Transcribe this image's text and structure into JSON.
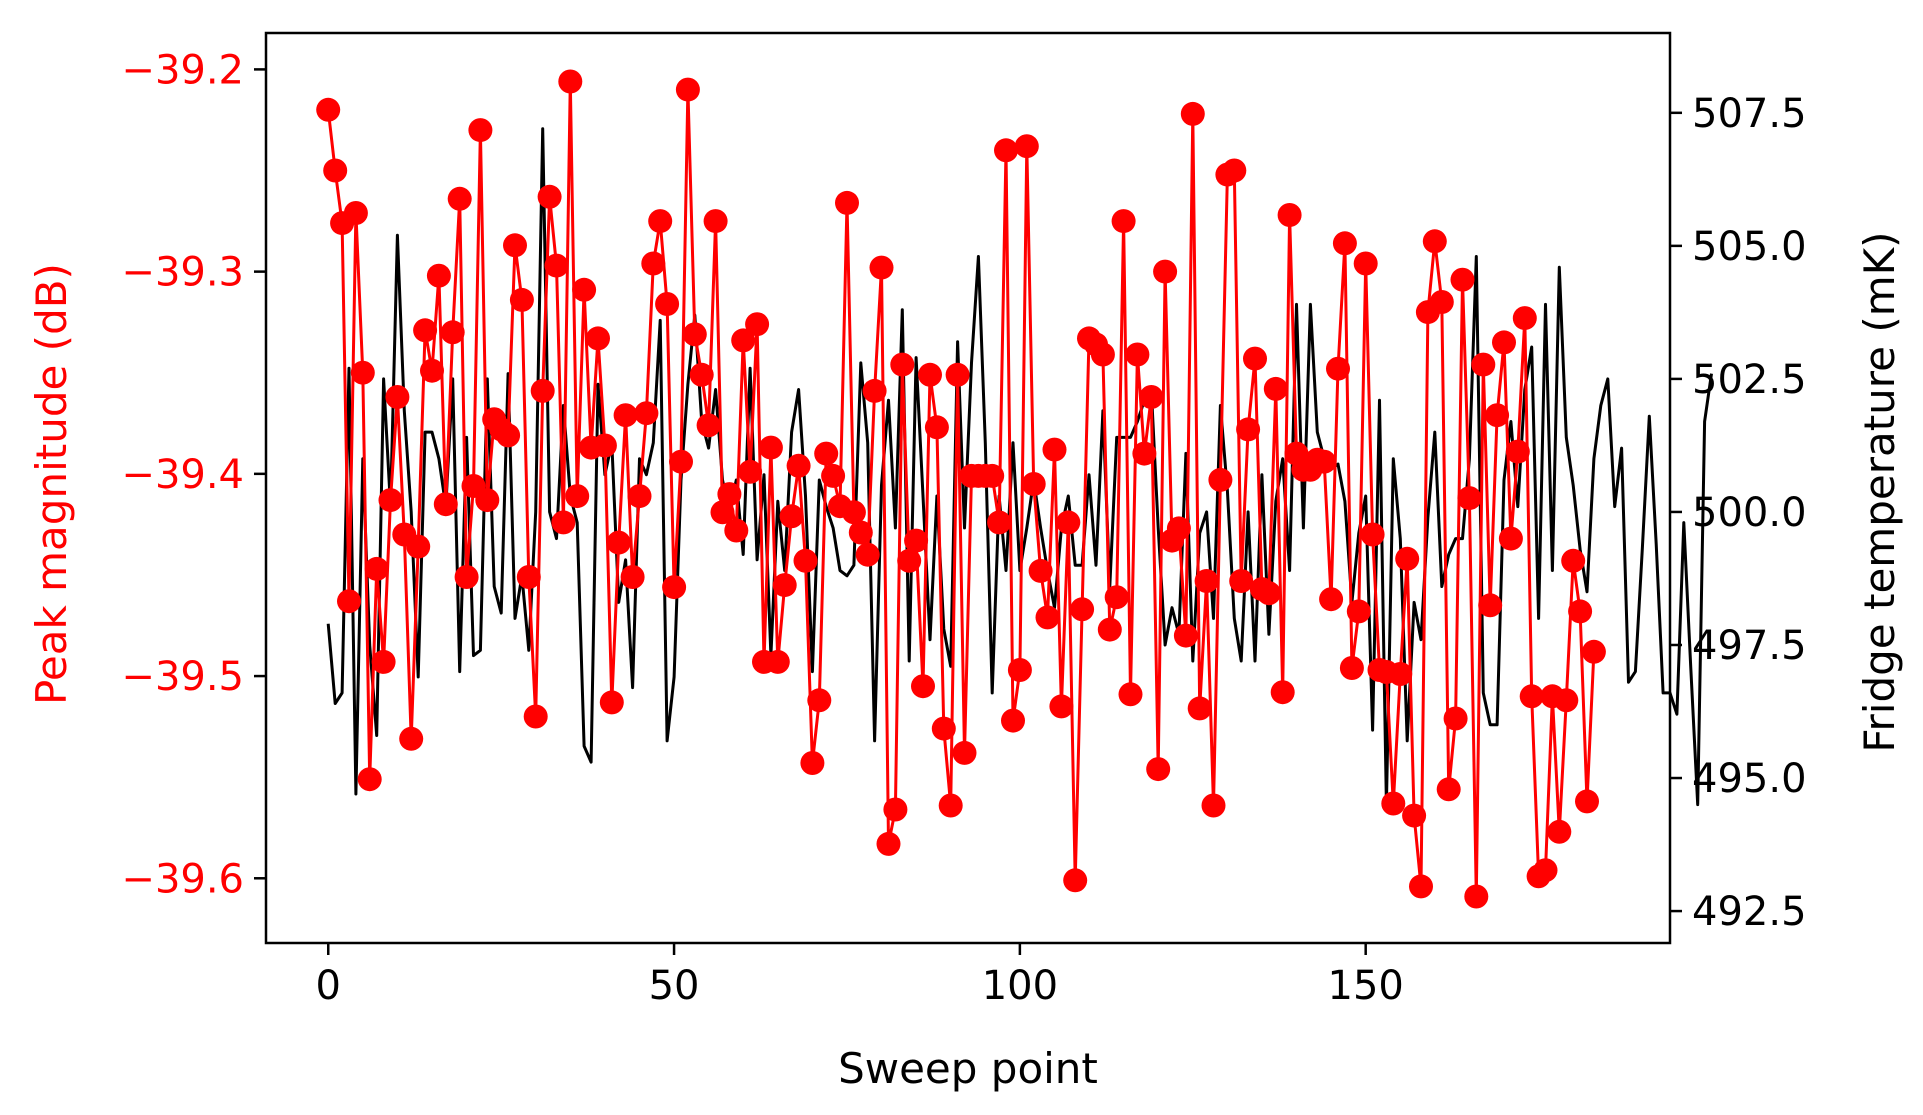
{
  "chart_data": {
    "type": "line",
    "xlabel": "Sweep point",
    "ylabel_left": "Peak magnitude (dB)",
    "ylabel_right": "Fridge temperature (mK)",
    "xlim": [
      -9,
      194
    ],
    "ylim_left": [
      -39.632,
      -39.182
    ],
    "ylim_right": [
      491.9,
      509.0
    ],
    "x_ticks": [
      0,
      50,
      100,
      150
    ],
    "y_left_ticks": [
      -39.6,
      -39.5,
      -39.4,
      -39.3,
      -39.2
    ],
    "y_right_ticks": [
      492.5,
      495.0,
      497.5,
      500.0,
      502.5,
      505.0,
      507.5
    ],
    "grid": false,
    "colors": {
      "magnitude": "#ff0000",
      "temperature": "#000000",
      "left_axis_text": "#ff0000",
      "right_axis_text": "#000000"
    },
    "series": [
      {
        "axis": "left",
        "color": "#ff0000",
        "marker": "circle",
        "x_start": 0,
        "x_step": 1,
        "values": [
          -39.22,
          -39.25,
          -39.276,
          -39.463,
          -39.271,
          -39.35,
          -39.551,
          -39.447,
          -39.493,
          -39.413,
          -39.362,
          -39.43,
          -39.531,
          -39.436,
          -39.329,
          -39.349,
          -39.302,
          -39.415,
          -39.33,
          -39.264,
          -39.451,
          -39.406,
          -39.23,
          -39.413,
          -39.373,
          -39.378,
          -39.381,
          -39.287,
          -39.314,
          -39.451,
          -39.52,
          -39.359,
          -39.263,
          -39.297,
          -39.424,
          -39.206,
          -39.411,
          -39.309,
          -39.387,
          -39.333,
          -39.386,
          -39.513,
          -39.434,
          -39.371,
          -39.451,
          -39.411,
          -39.37,
          -39.296,
          -39.275,
          -39.316,
          -39.456,
          -39.394,
          -39.21,
          -39.331,
          -39.351,
          -39.376,
          -39.275,
          -39.419,
          -39.41,
          -39.428,
          -39.334,
          -39.399,
          -39.326,
          -39.493,
          -39.387,
          -39.493,
          -39.455,
          -39.421,
          -39.396,
          -39.443,
          -39.543,
          -39.512,
          -39.39,
          -39.401,
          -39.416,
          -39.266,
          -39.419,
          -39.429,
          -39.44,
          -39.359,
          -39.298,
          -39.583,
          -39.566,
          -39.346,
          -39.443,
          -39.433,
          -39.505,
          -39.351,
          -39.377,
          -39.526,
          -39.564,
          -39.351,
          -39.538,
          -39.401,
          -39.401,
          -39.401,
          -39.401,
          -39.424,
          -39.24,
          -39.522,
          -39.497,
          -39.238,
          -39.405,
          -39.448,
          -39.471,
          -39.388,
          -39.515,
          -39.424,
          -39.601,
          -39.467,
          -39.333,
          -39.336,
          -39.341,
          -39.477,
          -39.461,
          -39.275,
          -39.509,
          -39.341,
          -39.39,
          -39.362,
          -39.546,
          -39.3,
          -39.433,
          -39.427,
          -39.48,
          -39.222,
          -39.516,
          -39.453,
          -39.564,
          -39.403,
          -39.252,
          -39.25,
          -39.453,
          -39.378,
          -39.343,
          -39.457,
          -39.459,
          -39.358,
          -39.508,
          -39.272,
          -39.39,
          -39.398,
          -39.398,
          -39.393,
          -39.394,
          -39.462,
          -39.348,
          -39.286,
          -39.496,
          -39.468,
          -39.296,
          -39.43,
          -39.497,
          -39.498,
          -39.563,
          -39.499,
          -39.442,
          -39.569,
          -39.604,
          -39.32,
          -39.285,
          -39.315,
          -39.556,
          -39.521,
          -39.304,
          -39.412,
          -39.609,
          -39.346,
          -39.465,
          -39.371,
          -39.335,
          -39.432,
          -39.389,
          -39.323,
          -39.51,
          -39.599,
          -39.596,
          -39.51,
          -39.577,
          -39.512,
          -39.443,
          -39.468,
          -39.562,
          -39.488
        ]
      },
      {
        "axis": "right",
        "color": "#000000",
        "marker": "none",
        "x_start": 0,
        "x_step": 1,
        "values": [
          497.9,
          496.4,
          496.6,
          502.7,
          494.7,
          501.0,
          497.5,
          495.8,
          502.5,
          500.1,
          505.2,
          501.9,
          500.0,
          496.9,
          501.5,
          501.5,
          501.0,
          500.1,
          502.5,
          497.0,
          501.4,
          497.3,
          497.4,
          502.5,
          498.6,
          498.1,
          502.6,
          498.0,
          498.8,
          497.4,
          500.0,
          507.2,
          500.0,
          499.5,
          502.0,
          500.3,
          499.8,
          495.6,
          495.3,
          502.4,
          500.7,
          501.3,
          498.3,
          499.1,
          496.7,
          501.0,
          500.7,
          501.3,
          503.6,
          495.7,
          496.9,
          500.6,
          502.4,
          503.7,
          501.7,
          501.2,
          502.3,
          500.6,
          500.0,
          500.6,
          499.2,
          502.7,
          499.1,
          500.7,
          497.3,
          500.2,
          498.9,
          501.5,
          502.3,
          500.3,
          497.0,
          500.6,
          500.1,
          499.7,
          498.9,
          498.8,
          499.0,
          502.8,
          501.3,
          495.7,
          500.5,
          502.1,
          499.7,
          503.8,
          497.2,
          502.9,
          500.3,
          497.6,
          500.3,
          497.8,
          497.1,
          503.2,
          499.7,
          502.8,
          504.8,
          501.3,
          496.6,
          500.3,
          498.9,
          501.3,
          498.9,
          499.7,
          500.6,
          499.7,
          498.9,
          498.2,
          499.7,
          500.3,
          499.0,
          499.0,
          500.7,
          499.0,
          501.9,
          498.6,
          501.4,
          501.4,
          501.4,
          501.7,
          502.1,
          502.3,
          499.7,
          497.5,
          498.2,
          497.7,
          501.1,
          497.2,
          499.6,
          500.0,
          498.0,
          502.0,
          500.4,
          498.0,
          497.2,
          500.0,
          497.2,
          500.7,
          497.7,
          500.2,
          501.0,
          498.9,
          503.9,
          499.7,
          503.9,
          501.5,
          501.0,
          500.8,
          500.9,
          500.2,
          498.3,
          499.6,
          500.3,
          495.9,
          502.1,
          494.5,
          501.0,
          499.5,
          495.7,
          498.3,
          497.6,
          499.9,
          501.5,
          498.6,
          499.2,
          499.5,
          499.5,
          501.0,
          504.8,
          496.6,
          496.0,
          496.0,
          500.6,
          501.7,
          500.1,
          502.3,
          503.1,
          498.0,
          503.9,
          498.9,
          504.6,
          501.4,
          500.5,
          499.3,
          498.5,
          501.0,
          502.0,
          502.5,
          500.1,
          501.2,
          496.8,
          497.0,
          499.3,
          501.8,
          499.4,
          496.6,
          496.6,
          496.2,
          499.8,
          497.1,
          494.5,
          501.7,
          502.6
        ]
      }
    ]
  }
}
